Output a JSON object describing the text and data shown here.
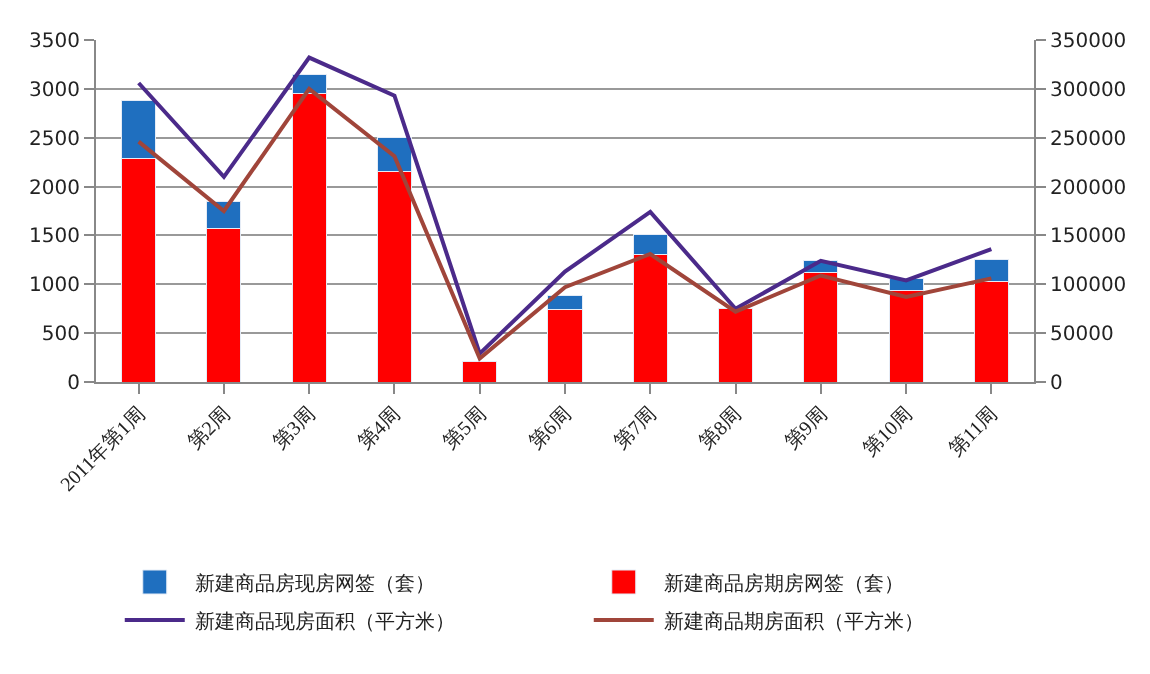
{
  "chart_data": {
    "type": "bar",
    "stacked": true,
    "categories": [
      "2011年第1周",
      "第2周",
      "第3周",
      "第4周",
      "第5周",
      "第6周",
      "第7周",
      "第8周",
      "第9周",
      "第10周",
      "第11周"
    ],
    "series": [
      {
        "name": "新建商品房期房网签（套）",
        "color": "#ff0000",
        "values": [
          2290,
          1570,
          2950,
          2150,
          210,
          740,
          1300,
          750,
          1120,
          940,
          1030
        ]
      },
      {
        "name": "新建商品房现房网签（套）",
        "color": "#1f6fbf",
        "values": [
          590,
          280,
          200,
          350,
          null,
          150,
          210,
          null,
          120,
          120,
          220
        ]
      },
      {
        "name": "新建商品现房面积（平方米）",
        "type": "line",
        "axis": "y2",
        "color": "#4b2a8a",
        "values": [
          306000,
          210000,
          332000,
          293000,
          29000,
          113000,
          174000,
          75000,
          124000,
          104000,
          136000
        ]
      },
      {
        "name": "新建商品期房面积（平方米）",
        "type": "line",
        "axis": "y2",
        "color": "#a0453a",
        "values": [
          246000,
          175000,
          300000,
          231000,
          24000,
          97000,
          131000,
          72000,
          109000,
          87000,
          106000
        ]
      }
    ],
    "ylim": [
      0,
      3500
    ],
    "yticks": [
      0,
      500,
      1000,
      1500,
      2000,
      2500,
      3000,
      3500
    ],
    "y2lim": [
      0,
      350000
    ],
    "y2ticks": [
      0,
      50000,
      100000,
      150000,
      200000,
      250000,
      300000,
      350000
    ],
    "grid": "y",
    "legend": "bottom",
    "marker": "none",
    "line_style": "solid"
  }
}
